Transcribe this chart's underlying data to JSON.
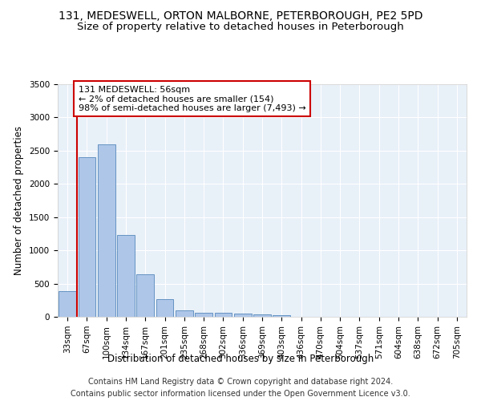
{
  "title_line1": "131, MEDESWELL, ORTON MALBORNE, PETERBOROUGH, PE2 5PD",
  "title_line2": "Size of property relative to detached houses in Peterborough",
  "xlabel": "Distribution of detached houses by size in Peterborough",
  "ylabel": "Number of detached properties",
  "categories": [
    "33sqm",
    "67sqm",
    "100sqm",
    "134sqm",
    "167sqm",
    "201sqm",
    "235sqm",
    "268sqm",
    "302sqm",
    "336sqm",
    "369sqm",
    "403sqm",
    "436sqm",
    "470sqm",
    "504sqm",
    "537sqm",
    "571sqm",
    "604sqm",
    "638sqm",
    "672sqm",
    "705sqm"
  ],
  "values": [
    390,
    2400,
    2600,
    1230,
    640,
    260,
    100,
    65,
    60,
    50,
    35,
    30,
    0,
    0,
    0,
    0,
    0,
    0,
    0,
    0,
    0
  ],
  "bar_color": "#aec6e8",
  "bar_edge_color": "#5588bb",
  "background_color": "#e8f0f8",
  "grid_color": "#ffffff",
  "annotation_box_text": "131 MEDESWELL: 56sqm\n← 2% of detached houses are smaller (154)\n98% of semi-detached houses are larger (7,493) →",
  "annotation_box_color": "#cc0000",
  "ylim": [
    0,
    3500
  ],
  "yticks": [
    0,
    500,
    1000,
    1500,
    2000,
    2500,
    3000,
    3500
  ],
  "footer_line1": "Contains HM Land Registry data © Crown copyright and database right 2024.",
  "footer_line2": "Contains public sector information licensed under the Open Government Licence v3.0.",
  "title_fontsize": 10,
  "subtitle_fontsize": 9.5,
  "axis_label_fontsize": 8.5,
  "tick_fontsize": 7.5,
  "footer_fontsize": 7.0,
  "annotation_fontsize": 8.0
}
